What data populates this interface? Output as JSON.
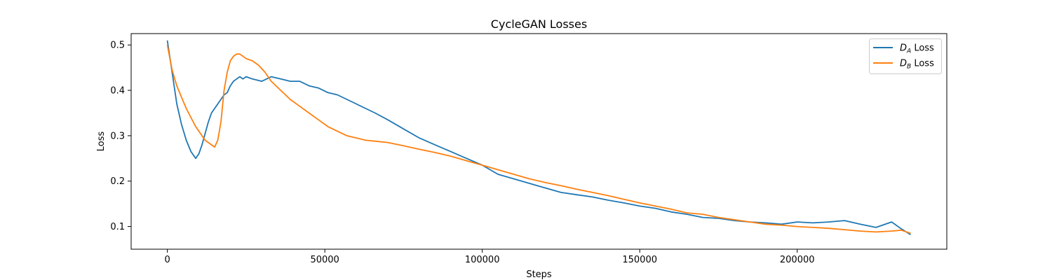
{
  "chart_data": {
    "type": "line",
    "title": "CycleGAN  Losses",
    "xlabel": "Steps",
    "ylabel": "Loss",
    "xlim": [
      -11500,
      247500
    ],
    "ylim": [
      0.05,
      0.525
    ],
    "xticks": [
      0,
      50000,
      100000,
      150000,
      200000
    ],
    "xtick_labels": [
      "0",
      "50000",
      "100000",
      "150000",
      "200000"
    ],
    "yticks": [
      0.1,
      0.2,
      0.3,
      0.4,
      0.5
    ],
    "ytick_labels": [
      "0.1",
      "0.2",
      "0.3",
      "0.4",
      "0.5"
    ],
    "grid": false,
    "legend": "top-right",
    "series": [
      {
        "name_main": "D",
        "name_sub": "A",
        "name_suffix": " Loss",
        "color": "#1f77b4",
        "x": [
          0,
          1500,
          3000,
          4500,
          6000,
          7500,
          9000,
          10000,
          11000,
          12000,
          13000,
          14000,
          15000,
          16000,
          17000,
          18000,
          19000,
          20000,
          21000,
          22000,
          23000,
          24000,
          25000,
          27000,
          30000,
          33000,
          36000,
          39000,
          42000,
          45000,
          48000,
          51000,
          54000,
          57000,
          60000,
          63000,
          66000,
          70000,
          75000,
          80000,
          85000,
          90000,
          95000,
          100000,
          105000,
          110000,
          115000,
          120000,
          125000,
          130000,
          135000,
          140000,
          145000,
          150000,
          155000,
          160000,
          165000,
          170000,
          175000,
          180000,
          185000,
          190000,
          195000,
          200000,
          205000,
          210000,
          215000,
          220000,
          225000,
          230000,
          233000,
          236000
        ],
        "y": [
          0.51,
          0.44,
          0.37,
          0.325,
          0.29,
          0.265,
          0.25,
          0.26,
          0.28,
          0.305,
          0.33,
          0.35,
          0.36,
          0.37,
          0.38,
          0.39,
          0.395,
          0.41,
          0.42,
          0.425,
          0.43,
          0.425,
          0.43,
          0.425,
          0.42,
          0.43,
          0.425,
          0.42,
          0.42,
          0.41,
          0.405,
          0.395,
          0.39,
          0.38,
          0.37,
          0.36,
          0.35,
          0.335,
          0.315,
          0.295,
          0.28,
          0.265,
          0.25,
          0.235,
          0.215,
          0.205,
          0.195,
          0.185,
          0.175,
          0.17,
          0.165,
          0.158,
          0.152,
          0.145,
          0.14,
          0.132,
          0.127,
          0.12,
          0.118,
          0.113,
          0.11,
          0.108,
          0.105,
          0.11,
          0.108,
          0.11,
          0.113,
          0.105,
          0.098,
          0.11,
          0.095,
          0.082
        ]
      },
      {
        "name_main": "D",
        "name_sub": "B",
        "name_suffix": " Loss",
        "color": "#ff7f0e",
        "x": [
          0,
          1500,
          3000,
          4500,
          6000,
          7500,
          9000,
          10000,
          11000,
          12000,
          13000,
          14000,
          15000,
          16000,
          17000,
          18000,
          19000,
          20000,
          21000,
          22000,
          23000,
          24000,
          25000,
          27000,
          29000,
          31000,
          33000,
          36000,
          39000,
          42000,
          45000,
          48000,
          51000,
          54000,
          57000,
          60000,
          63000,
          66000,
          70000,
          75000,
          80000,
          85000,
          90000,
          95000,
          100000,
          105000,
          110000,
          115000,
          120000,
          125000,
          130000,
          135000,
          140000,
          145000,
          150000,
          155000,
          160000,
          165000,
          170000,
          175000,
          180000,
          185000,
          190000,
          195000,
          200000,
          205000,
          210000,
          215000,
          220000,
          225000,
          230000,
          233000,
          236000
        ],
        "y": [
          0.5,
          0.445,
          0.41,
          0.385,
          0.36,
          0.34,
          0.32,
          0.31,
          0.3,
          0.29,
          0.285,
          0.28,
          0.275,
          0.29,
          0.33,
          0.4,
          0.44,
          0.465,
          0.475,
          0.48,
          0.48,
          0.475,
          0.47,
          0.465,
          0.455,
          0.44,
          0.42,
          0.4,
          0.38,
          0.365,
          0.35,
          0.335,
          0.32,
          0.31,
          0.3,
          0.295,
          0.29,
          0.288,
          0.285,
          0.278,
          0.27,
          0.263,
          0.255,
          0.245,
          0.235,
          0.225,
          0.215,
          0.205,
          0.197,
          0.19,
          0.182,
          0.175,
          0.168,
          0.16,
          0.152,
          0.145,
          0.138,
          0.13,
          0.127,
          0.12,
          0.115,
          0.11,
          0.105,
          0.103,
          0.1,
          0.098,
          0.096,
          0.093,
          0.09,
          0.088,
          0.09,
          0.092,
          0.085
        ]
      }
    ]
  }
}
